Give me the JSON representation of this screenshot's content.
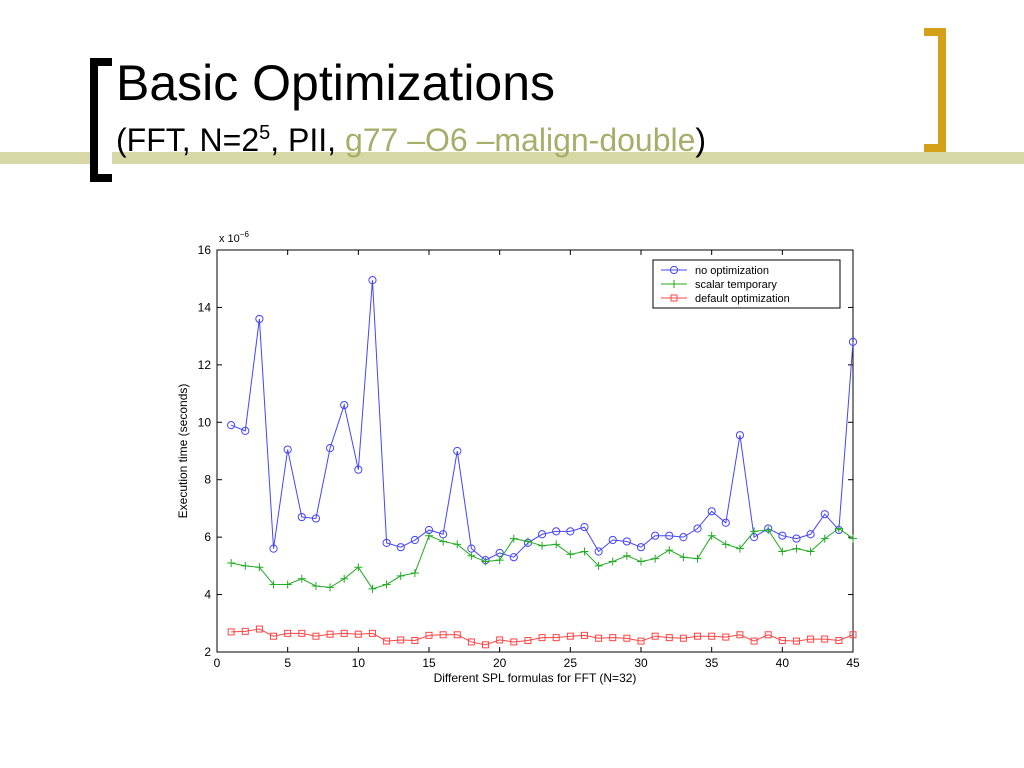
{
  "slide": {
    "title": "Basic Optimizations",
    "subtitle_prefix": "(FFT, N=2",
    "subtitle_sup": "5",
    "subtitle_mid": ", PII, ",
    "subtitle_highlight": "g77 –O6 –malign-double",
    "subtitle_suffix": ")",
    "colors": {
      "accent_bar": "#d6d8a6",
      "right_bracket": "#d4a017",
      "highlight_text": "#a8ad6a"
    }
  },
  "chart_data": {
    "type": "line",
    "xlabel": "Different SPL formulas for FFT (N=32)",
    "ylabel": "Execution time (seconds)",
    "y_multiplier": "x 10",
    "y_multiplier_exp": "−6",
    "xlim": [
      0,
      45
    ],
    "ylim": [
      2,
      16
    ],
    "xticks": [
      0,
      5,
      10,
      15,
      20,
      25,
      30,
      35,
      40,
      45
    ],
    "yticks": [
      2,
      4,
      6,
      8,
      10,
      12,
      14,
      16
    ],
    "grid": false,
    "legend_position": "top-right",
    "x": [
      1,
      2,
      3,
      4,
      5,
      6,
      7,
      8,
      9,
      10,
      11,
      12,
      13,
      14,
      15,
      16,
      17,
      18,
      19,
      20,
      21,
      22,
      23,
      24,
      25,
      26,
      27,
      28,
      29,
      30,
      31,
      32,
      33,
      34,
      35,
      36,
      37,
      38,
      39,
      40,
      41,
      42,
      43,
      44,
      45
    ],
    "series": [
      {
        "name": "no optimization",
        "color": "#4444ff",
        "marker": "circle",
        "values": [
          9.9,
          9.7,
          13.6,
          5.6,
          9.05,
          6.7,
          6.65,
          9.1,
          10.6,
          8.35,
          14.95,
          5.8,
          5.65,
          5.9,
          6.25,
          6.1,
          9.0,
          5.6,
          5.2,
          5.45,
          5.3,
          5.8,
          6.1,
          6.2,
          6.2,
          6.35,
          5.5,
          5.9,
          5.85,
          5.65,
          6.05,
          6.05,
          6.0,
          6.3,
          6.9,
          6.5,
          9.55,
          6.0,
          6.3,
          6.05,
          5.95,
          6.1,
          6.8,
          6.25,
          12.8
        ]
      },
      {
        "name": "scalar temporary",
        "color": "#22aa22",
        "marker": "plus",
        "values": [
          5.1,
          5.0,
          4.95,
          4.35,
          4.35,
          4.55,
          4.3,
          4.25,
          4.55,
          4.95,
          4.2,
          4.35,
          4.65,
          4.75,
          6.05,
          5.85,
          5.75,
          5.35,
          5.15,
          5.2,
          5.95,
          5.85,
          5.7,
          5.75,
          5.4,
          5.5,
          5.0,
          5.15,
          5.35,
          5.15,
          5.25,
          5.55,
          5.3,
          5.25,
          6.05,
          5.75,
          5.6,
          6.2,
          6.25,
          5.5,
          5.6,
          5.5,
          5.95,
          6.3,
          5.95
        ]
      },
      {
        "name": "default optimization",
        "color": "#ff4444",
        "marker": "square",
        "values": [
          2.7,
          2.72,
          2.8,
          2.55,
          2.65,
          2.65,
          2.55,
          2.62,
          2.65,
          2.62,
          2.65,
          2.38,
          2.42,
          2.4,
          2.58,
          2.6,
          2.6,
          2.35,
          2.25,
          2.42,
          2.35,
          2.4,
          2.5,
          2.5,
          2.55,
          2.58,
          2.48,
          2.5,
          2.48,
          2.38,
          2.55,
          2.5,
          2.48,
          2.55,
          2.55,
          2.52,
          2.6,
          2.38,
          2.6,
          2.4,
          2.38,
          2.45,
          2.45,
          2.4,
          2.6
        ]
      }
    ]
  }
}
